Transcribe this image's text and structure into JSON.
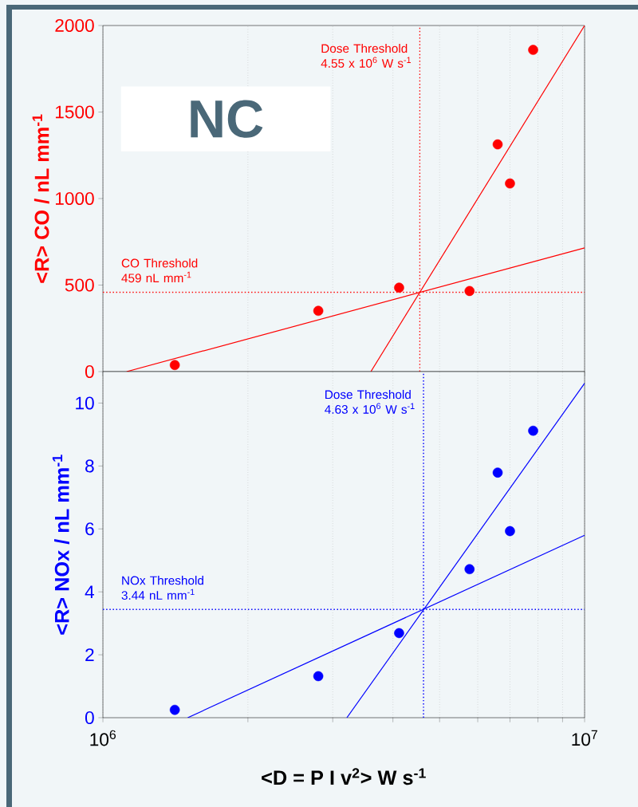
{
  "chart_data": [
    {
      "type": "scatter",
      "ylabel": "<R> CO  / nL mm$^{-1}$",
      "annotations": [
        "NC"
      ],
      "log": "x",
      "grid": "x",
      "tick_labels": "y",
      "xlim": [
        1000000,
        10000000
      ],
      "xticks": [
        {
          "value": 1000000,
          "label": null
        },
        {
          "value": 2000000,
          "label": null
        },
        {
          "value": 3000000,
          "label": null
        },
        {
          "value": 4000000,
          "label": null
        },
        {
          "value": 5000000,
          "label": null
        },
        {
          "value": 6000000,
          "label": null
        },
        {
          "value": 7000000,
          "label": null
        },
        {
          "value": 8000000,
          "label": null
        },
        {
          "value": 9000000,
          "label": null
        },
        {
          "value": 10000000,
          "label": null
        }
      ],
      "ylim": [
        0,
        2000
      ],
      "yticks": [
        0,
        500,
        1000,
        1500,
        2000
      ],
      "series": [
        {
          "type": "scatter",
          "color": "#ff0000",
          "marker": "circle",
          "x": [
            1410000,
            2800000,
            4120000,
            5770000,
            6600000,
            7000000,
            7820000
          ],
          "values": [
            38,
            351,
            485,
            466,
            1313,
            1087,
            1859
          ]
        },
        {
          "type": "line",
          "color": "#ff0000",
          "marker": "none",
          "x": [
            1120000,
            10000000
          ],
          "values": [
            0,
            715
          ]
        },
        {
          "type": "line",
          "color": "#ff0000",
          "marker": "none",
          "x": [
            3600000,
            10000000
          ],
          "values": [
            0,
            2000
          ]
        }
      ],
      "ref_lines": [
        {
          "axis": "x",
          "value": 4550000,
          "label": "Dose Threshold 4.55 x 10$^{6}$ W s$^{-1}$",
          "color": "#ff0000",
          "line_style": "dotted"
        },
        {
          "axis": "y",
          "value": 459,
          "label": "CO Threshold 459 nL mm$^{-1}$",
          "color": "#ff0000",
          "line_style": "dotted"
        }
      ]
    },
    {
      "type": "scatter",
      "ylabel": "<R> NOx  / nL mm$^{-1}$",
      "xlabel": "<D = P I v$^{2}$> W s$^{-1}$",
      "log": "x",
      "grid": "x",
      "xlim": [
        1000000,
        10000000
      ],
      "xticks": [
        {
          "value": 1000000,
          "label": "10$^{6}$"
        },
        {
          "value": 2000000,
          "label": null
        },
        {
          "value": 3000000,
          "label": null
        },
        {
          "value": 4000000,
          "label": null
        },
        {
          "value": 5000000,
          "label": null
        },
        {
          "value": 6000000,
          "label": null
        },
        {
          "value": 7000000,
          "label": null
        },
        {
          "value": 8000000,
          "label": null
        },
        {
          "value": 9000000,
          "label": null
        },
        {
          "value": 10000000,
          "label": "10$^{7}$"
        }
      ],
      "ylim": [
        0,
        11
      ],
      "yticks": [
        0,
        2,
        4,
        6,
        8,
        10
      ],
      "series": [
        {
          "type": "scatter",
          "color": "#0000ff",
          "marker": "circle",
          "x": [
            1410000,
            2800000,
            4120000,
            5770000,
            6600000,
            7000000,
            7820000
          ],
          "values": [
            0.25,
            1.32,
            2.69,
            4.72,
            7.79,
            5.93,
            9.12
          ]
        },
        {
          "type": "line",
          "color": "#0000ff",
          "marker": "none",
          "x": [
            1500000,
            10000000
          ],
          "values": [
            0,
            5.8
          ]
        },
        {
          "type": "line",
          "color": "#0000ff",
          "marker": "none",
          "x": [
            3210000,
            10000000
          ],
          "values": [
            0,
            10.63
          ]
        }
      ],
      "ref_lines": [
        {
          "axis": "x",
          "value": 4630000,
          "label": "Dose Threshold 4.63 x 10$^{6}$ W s$^{-1}$",
          "color": "#0000ff",
          "line_style": "dotted"
        },
        {
          "axis": "y",
          "value": 3.44,
          "label": "NOx Threshold 3.44 nL mm$^{-1}$",
          "color": "#0000ff",
          "line_style": "dotted"
        }
      ]
    }
  ]
}
